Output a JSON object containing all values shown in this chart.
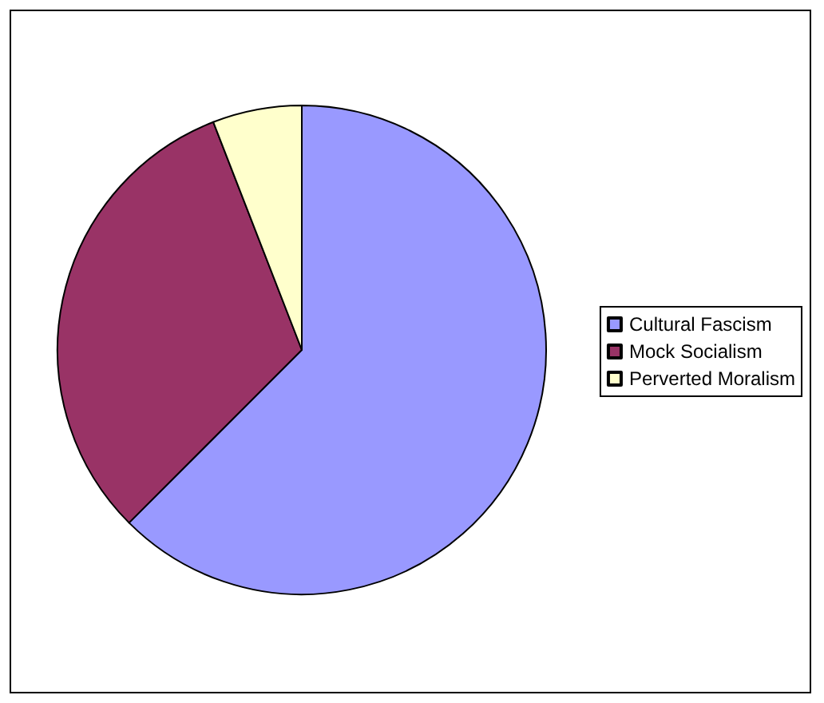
{
  "chart_data": {
    "type": "pie",
    "categories": [
      "Cultural Fascism",
      "Mock Socialism",
      "Perverted Moralism"
    ],
    "values": [
      62.5,
      31.6,
      5.9
    ],
    "colors": [
      "#9999ff",
      "#993366",
      "#ffffcc"
    ],
    "legend": "right"
  }
}
